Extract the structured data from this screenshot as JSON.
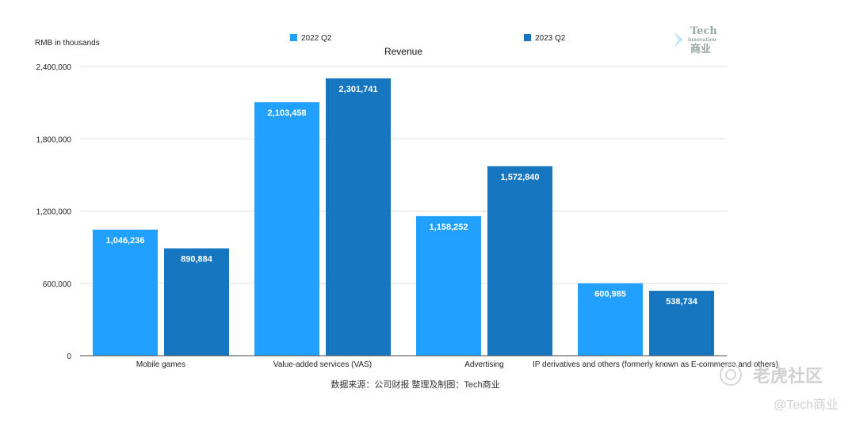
{
  "chart_data": {
    "type": "bar",
    "title": "Revenue",
    "ylabel": "RMB in thousands",
    "xlabel": "",
    "ylim": [
      0,
      2400000
    ],
    "yticks": [
      0,
      600000,
      1200000,
      1800000,
      2400000
    ],
    "ytick_labels": [
      "0",
      "600,000",
      "1,200,000",
      "1,800,000",
      "2,400,000"
    ],
    "grid": true,
    "legend_placement": "top",
    "categories": [
      "Mobile games",
      "Value-added services (VAS)",
      "Advertising",
      "IP derivatives and others (formerly known as E-commerce and others)"
    ],
    "series": [
      {
        "name": "2022 Q2",
        "color": "#22a0ff",
        "values": [
          1046236,
          2103458,
          1158252,
          600985
        ],
        "labels": [
          "1,046,236",
          "2,103,458",
          "1,158,252",
          "600,985"
        ]
      },
      {
        "name": "2023 Q2",
        "color": "#1676bf",
        "values": [
          890884,
          2301741,
          1572840,
          538734
        ],
        "labels": [
          "890,884",
          "2,301,741",
          "1,572,840",
          "538,734"
        ]
      }
    ]
  },
  "source_note": "数据来源：公司财报 整理及制图：Tech商业",
  "logo": {
    "line1": "Tech",
    "line2": "innovation",
    "line3": "商业",
    "color": "#9aa6a6"
  },
  "watermark": {
    "brand": "老虎社区",
    "handle": "@Tech商业"
  }
}
